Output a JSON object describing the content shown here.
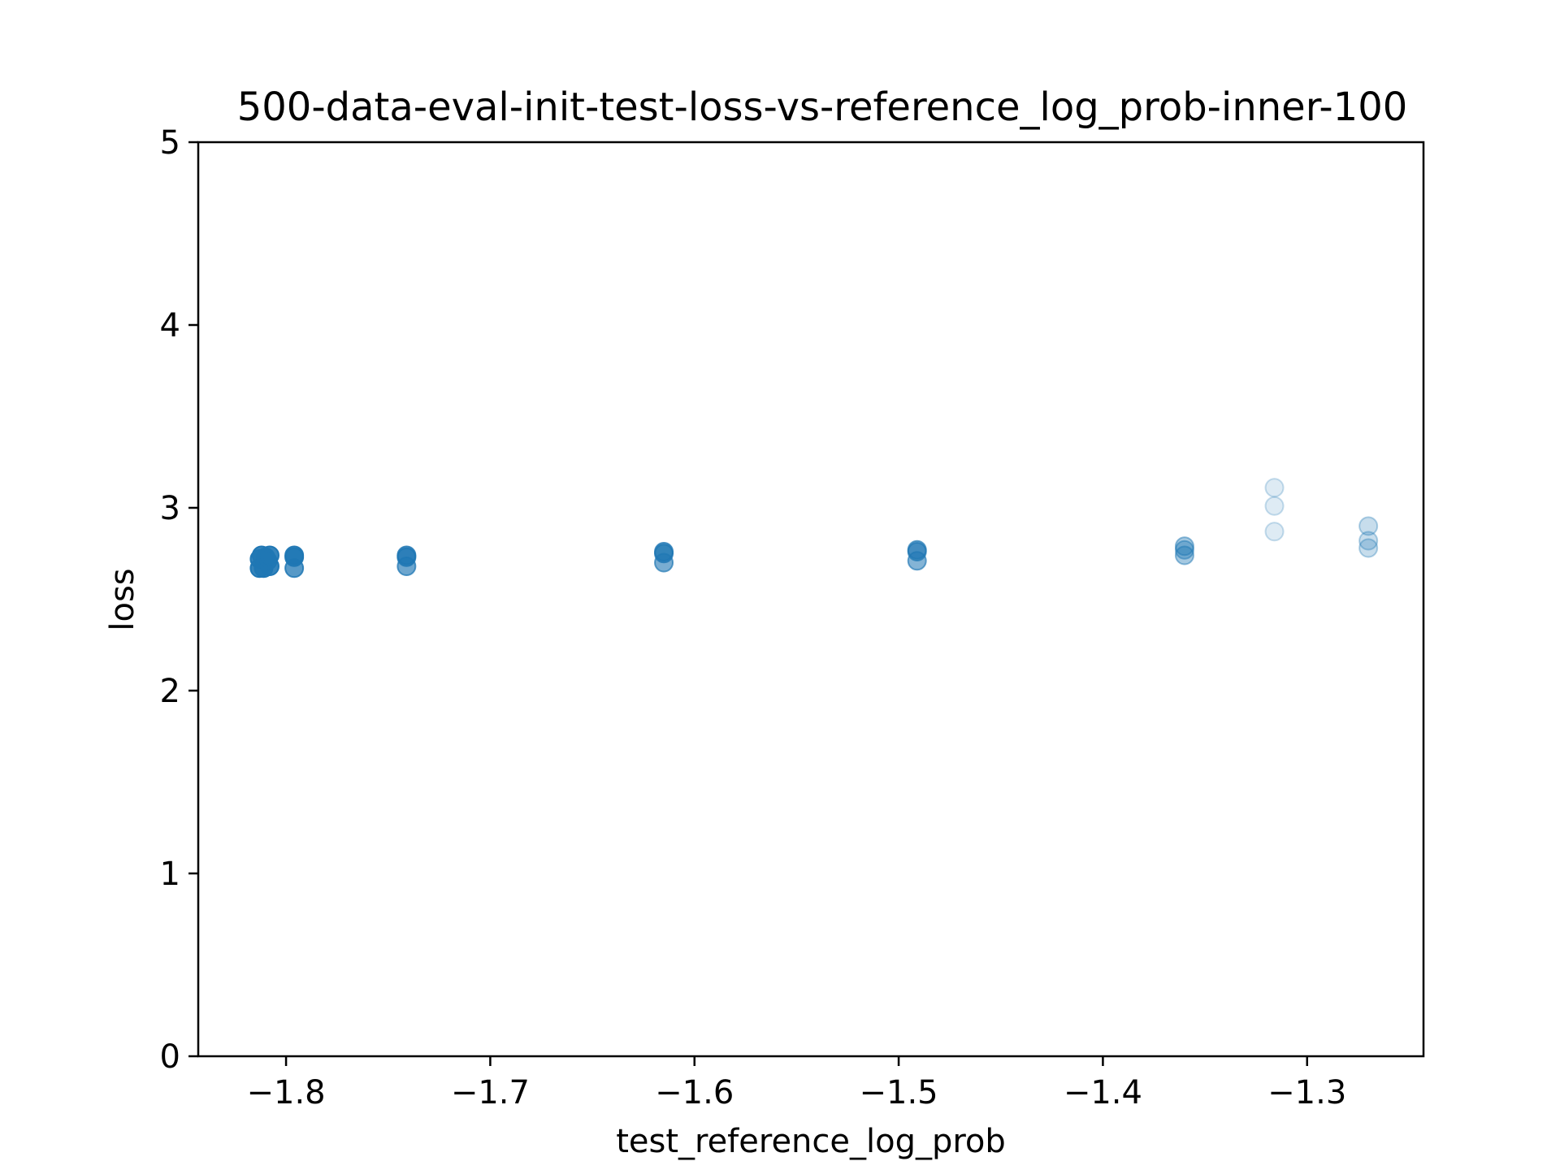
{
  "chart_data": {
    "type": "scatter",
    "title": "500-data-eval-init-test-loss-vs-reference_log_prob-inner-100",
    "xlabel": "test_reference_log_prob",
    "ylabel": "loss",
    "xlim": [
      -1.843,
      -1.243
    ],
    "ylim": [
      0,
      5
    ],
    "x_ticks": [
      -1.8,
      -1.7,
      -1.6,
      -1.5,
      -1.4,
      -1.3
    ],
    "x_tick_labels": [
      "−1.8",
      "−1.7",
      "−1.6",
      "−1.5",
      "−1.4",
      "−1.3"
    ],
    "y_ticks": [
      0,
      1,
      2,
      3,
      4,
      5
    ],
    "y_tick_labels": [
      "0",
      "1",
      "2",
      "3",
      "4",
      "5"
    ],
    "grid": false,
    "marker_color": "#1f77b4",
    "series": [
      {
        "points": [
          {
            "x": -1.813,
            "y": 2.67,
            "opacity": 0.9
          },
          {
            "x": -1.813,
            "y": 2.72,
            "opacity": 0.9
          },
          {
            "x": -1.812,
            "y": 2.74,
            "opacity": 0.9
          },
          {
            "x": -1.811,
            "y": 2.67,
            "opacity": 0.9
          },
          {
            "x": -1.81,
            "y": 2.73,
            "opacity": 0.9
          },
          {
            "x": -1.809,
            "y": 2.71,
            "opacity": 0.9
          },
          {
            "x": -1.808,
            "y": 2.68,
            "opacity": 0.9
          },
          {
            "x": -1.808,
            "y": 2.74,
            "opacity": 0.9
          },
          {
            "x": -1.796,
            "y": 2.67,
            "opacity": 0.75
          },
          {
            "x": -1.796,
            "y": 2.73,
            "opacity": 0.85
          },
          {
            "x": -1.796,
            "y": 2.74,
            "opacity": 0.85
          },
          {
            "x": -1.741,
            "y": 2.68,
            "opacity": 0.65
          },
          {
            "x": -1.741,
            "y": 2.73,
            "opacity": 0.75
          },
          {
            "x": -1.741,
            "y": 2.74,
            "opacity": 0.75
          },
          {
            "x": -1.615,
            "y": 2.7,
            "opacity": 0.6
          },
          {
            "x": -1.615,
            "y": 2.75,
            "opacity": 0.7
          },
          {
            "x": -1.615,
            "y": 2.76,
            "opacity": 0.7
          },
          {
            "x": -1.491,
            "y": 2.71,
            "opacity": 0.55
          },
          {
            "x": -1.491,
            "y": 2.76,
            "opacity": 0.6
          },
          {
            "x": -1.491,
            "y": 2.77,
            "opacity": 0.6
          },
          {
            "x": -1.36,
            "y": 2.74,
            "opacity": 0.4
          },
          {
            "x": -1.36,
            "y": 2.77,
            "opacity": 0.4
          },
          {
            "x": -1.36,
            "y": 2.79,
            "opacity": 0.4
          },
          {
            "x": -1.316,
            "y": 2.87,
            "opacity": 0.15
          },
          {
            "x": -1.316,
            "y": 3.01,
            "opacity": 0.15
          },
          {
            "x": -1.316,
            "y": 3.11,
            "opacity": 0.15
          },
          {
            "x": -1.27,
            "y": 2.78,
            "opacity": 0.25
          },
          {
            "x": -1.27,
            "y": 2.82,
            "opacity": 0.25
          },
          {
            "x": -1.27,
            "y": 2.9,
            "opacity": 0.25
          }
        ]
      }
    ]
  }
}
